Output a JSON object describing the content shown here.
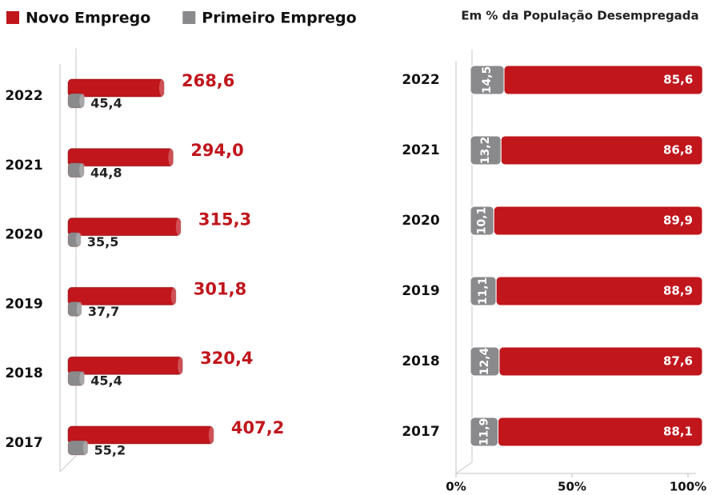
{
  "chart_data": [
    {
      "type": "bar",
      "orientation": "horizontal",
      "legend": "top",
      "categories": [
        "2022",
        "2021",
        "2020",
        "2019",
        "2018",
        "2017"
      ],
      "series": [
        {
          "name": "Novo Emprego",
          "color": "#c0161c",
          "values": [
            268.6,
            294.0,
            315.3,
            301.8,
            320.4,
            407.2
          ],
          "value_labels": [
            "268,6",
            "294,0",
            "315,3",
            "301,8",
            "320,4",
            "407,2"
          ]
        },
        {
          "name": "Primeiro Emprego",
          "color": "#8a8a8c",
          "values": [
            45.4,
            44.8,
            35.5,
            37.7,
            45.4,
            55.2
          ],
          "value_labels": [
            "45,4",
            "44,8",
            "35,5",
            "37,7",
            "45,4",
            "55,2"
          ]
        }
      ],
      "xlim": [
        0,
        450
      ]
    },
    {
      "type": "stacked_bar",
      "orientation": "horizontal",
      "title": "Em % da População Desempregada",
      "categories": [
        "2022",
        "2021",
        "2020",
        "2019",
        "2018",
        "2017"
      ],
      "series": [
        {
          "color": "#8a8a8c",
          "values": [
            14.5,
            13.2,
            10.1,
            11.1,
            12.4,
            11.9
          ],
          "value_labels": [
            "14,5",
            "13,2",
            "10,1",
            "11,1",
            "12,4",
            "11,9"
          ]
        },
        {
          "color": "#c0161c",
          "values": [
            85.6,
            86.8,
            89.9,
            88.9,
            87.6,
            88.1
          ],
          "value_labels": [
            "85,6",
            "86,8",
            "89,9",
            "88,9",
            "87,6",
            "88,1"
          ]
        }
      ],
      "xlim": [
        0,
        100
      ],
      "xticks": [
        {
          "value": 0,
          "label": "0%"
        },
        {
          "value": 50,
          "label": "50%"
        },
        {
          "value": 100,
          "label": "100%"
        }
      ]
    }
  ]
}
